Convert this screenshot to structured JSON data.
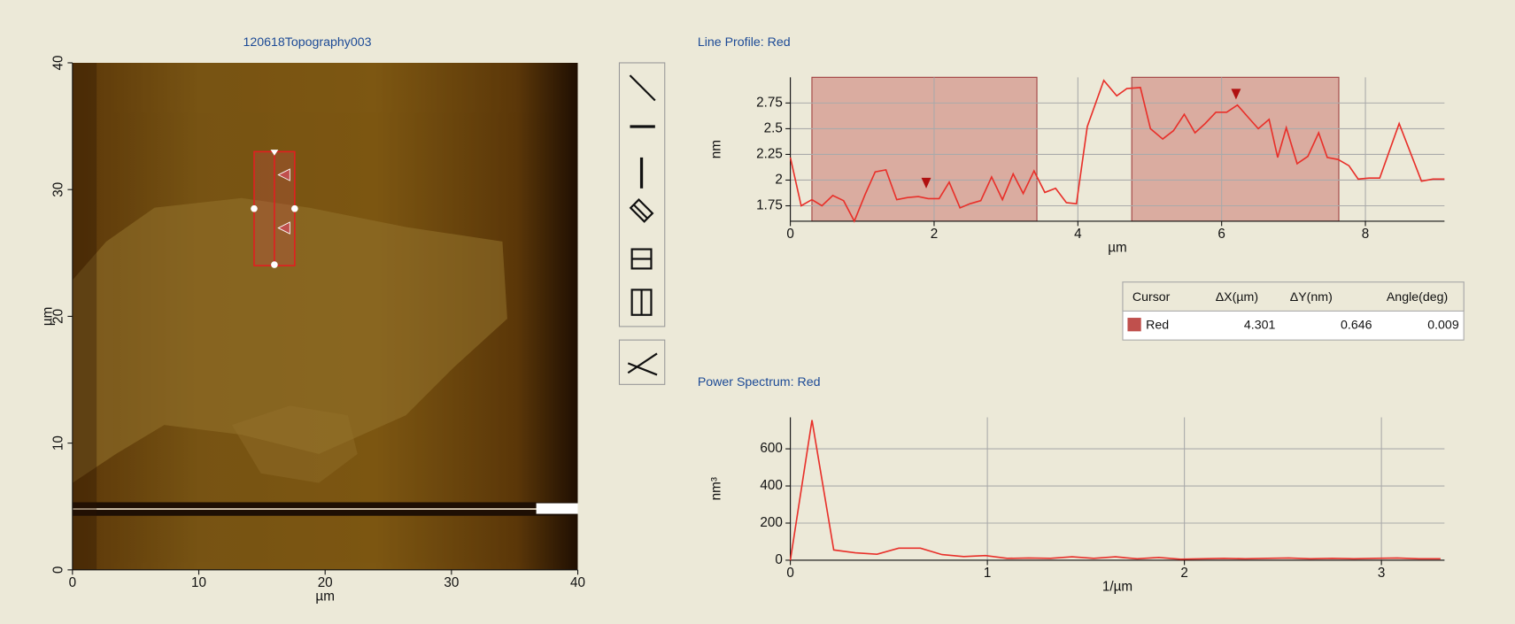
{
  "chart_data": [
    {
      "type": "image",
      "title": "120618Topography003",
      "x_label": "µm",
      "y_label": "µm",
      "xlim": [
        0,
        40
      ],
      "ylim": [
        0,
        40
      ],
      "xticks": [
        0,
        10,
        20,
        30,
        40
      ],
      "yticks": [
        0,
        10,
        20,
        30,
        40
      ]
    },
    {
      "type": "line",
      "title": "Line Profile: Red",
      "x_label": "µm",
      "y_label": "nm",
      "color": "#e8302a",
      "grid": true,
      "xlim": [
        0,
        9.1
      ],
      "ylim": [
        1.6,
        3.0
      ],
      "xticks": [
        0,
        2,
        4,
        6,
        8
      ],
      "yticks": [
        1.75,
        2,
        2.25,
        2.5,
        2.75
      ],
      "regions": [
        [
          0.3,
          3.43
        ],
        [
          4.75,
          7.63
        ]
      ],
      "cursors": [
        1.89,
        6.2
      ],
      "x": [
        0,
        0.15,
        0.3,
        0.44,
        0.59,
        0.74,
        0.89,
        1.04,
        1.18,
        1.33,
        1.48,
        1.63,
        1.78,
        1.92,
        2.07,
        2.21,
        2.36,
        2.5,
        2.65,
        2.8,
        2.95,
        3.1,
        3.24,
        3.39,
        3.54,
        3.69,
        3.84,
        3.98,
        4.13,
        4.36,
        4.54,
        4.68,
        4.87,
        5.01,
        5.18,
        5.33,
        5.48,
        5.63,
        5.77,
        5.92,
        6.07,
        6.22,
        6.37,
        6.51,
        6.66,
        6.78,
        6.9,
        7.05,
        7.2,
        7.35,
        7.47,
        7.62,
        7.77,
        7.9,
        8.05,
        8.2,
        8.47,
        8.78,
        8.94,
        9.1
      ],
      "values": [
        2.22,
        1.75,
        1.81,
        1.75,
        1.85,
        1.8,
        1.6,
        1.86,
        2.08,
        2.1,
        1.81,
        1.83,
        1.84,
        1.82,
        1.82,
        1.98,
        1.73,
        1.77,
        1.8,
        2.03,
        1.81,
        2.06,
        1.87,
        2.09,
        1.88,
        1.92,
        1.78,
        1.77,
        2.52,
        2.97,
        2.82,
        2.89,
        2.9,
        2.5,
        2.4,
        2.48,
        2.64,
        2.46,
        2.55,
        2.66,
        2.66,
        2.73,
        2.61,
        2.5,
        2.59,
        2.22,
        2.51,
        2.16,
        2.23,
        2.46,
        2.22,
        2.2,
        2.14,
        2.01,
        2.02,
        2.02,
        2.55,
        1.99,
        2.01,
        2.01
      ]
    },
    {
      "type": "line",
      "title": "Power Spectrum: Red",
      "x_label": "1/µm",
      "y_label": "nm³",
      "color": "#e8302a",
      "grid": true,
      "xlim": [
        0,
        3.32
      ],
      "ylim": [
        0,
        770
      ],
      "xticks": [
        0,
        1,
        2,
        3
      ],
      "yticks": [
        0,
        200,
        400,
        600
      ],
      "x": [
        0,
        0.11,
        0.22,
        0.33,
        0.44,
        0.55,
        0.66,
        0.77,
        0.88,
        0.99,
        1.1,
        1.21,
        1.32,
        1.43,
        1.54,
        1.65,
        1.76,
        1.87,
        1.98,
        2.09,
        2.2,
        2.31,
        2.42,
        2.53,
        2.64,
        2.75,
        2.86,
        2.97,
        3.08,
        3.19,
        3.3
      ],
      "values": [
        0,
        755,
        55,
        40,
        32,
        65,
        65,
        30,
        20,
        25,
        10,
        12,
        10,
        18,
        10,
        18,
        8,
        15,
        5,
        8,
        10,
        8,
        10,
        12,
        8,
        10,
        8,
        10,
        12,
        8,
        8
      ]
    }
  ],
  "cursor_table": {
    "columns": [
      "Cursor",
      "ΔX(µm)",
      "ΔY(nm)",
      "Angle(deg)"
    ],
    "rows": [
      [
        "Red",
        "4.301",
        "0.646",
        "0.009"
      ]
    ]
  }
}
